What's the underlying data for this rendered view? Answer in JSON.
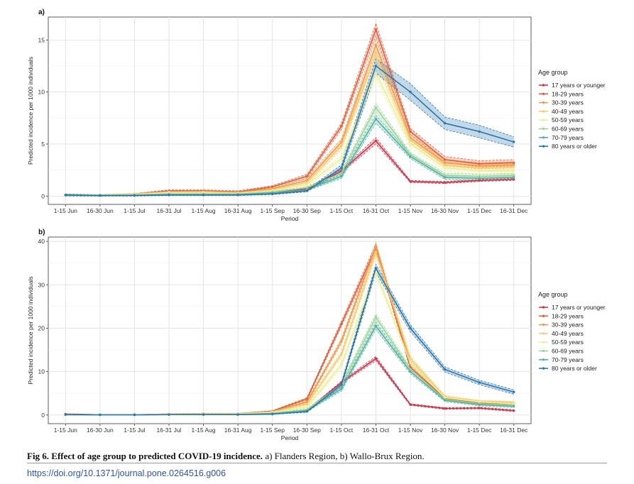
{
  "caption": {
    "label": "Fig 6. Effect of age group to predicted COVID-19 incidence.",
    "text": " a) Flanders Region, b) Wallo-Brux Region."
  },
  "doi": "https://doi.org/10.1371/journal.pone.0264516.g006",
  "chart_data": [
    {
      "type": "line",
      "panel_label": "a)",
      "xlabel": "Period",
      "ylabel": "Predicted incidence per 1000 individuals",
      "ylim": [
        -0.8,
        17.2
      ],
      "yticks": [
        0,
        5,
        10,
        15
      ],
      "grid": true,
      "legend_title": "Age group",
      "legend_position": "right",
      "categories": [
        "1-15 Jun",
        "16-30 Jun",
        "1-15 Jul",
        "16-31 Jul",
        "1-15 Aug",
        "16-31 Aug",
        "1-15 Sep",
        "16-30 Sep",
        "1-15 Oct",
        "16-31 Oct",
        "1-15 Nov",
        "16-30 Nov",
        "1-15 Dec",
        "16-31 Dec"
      ],
      "series": [
        {
          "name": "17 years or younger",
          "color": "#c93a4e",
          "values": [
            0.1,
            0.05,
            0.1,
            0.2,
            0.2,
            0.15,
            0.3,
            0.7,
            2.4,
            5.3,
            1.4,
            1.3,
            1.5,
            1.6
          ],
          "ci": [
            0.1,
            0.05,
            0.05,
            0.05,
            0.05,
            0.05,
            0.05,
            0.1,
            0.15,
            0.3,
            0.1,
            0.1,
            0.1,
            0.1
          ]
        },
        {
          "name": "18-29 years",
          "color": "#e0603f",
          "values": [
            0.1,
            0.1,
            0.2,
            0.5,
            0.5,
            0.4,
            0.9,
            1.9,
            6.7,
            16.0,
            6.2,
            3.5,
            3.1,
            3.2
          ],
          "ci": [
            0.1,
            0.05,
            0.05,
            0.1,
            0.1,
            0.1,
            0.1,
            0.2,
            0.3,
            0.6,
            0.3,
            0.3,
            0.3,
            0.3
          ]
        },
        {
          "name": "30-39 years",
          "color": "#f09a4e",
          "values": [
            0.1,
            0.1,
            0.2,
            0.4,
            0.45,
            0.35,
            0.7,
            1.5,
            5.2,
            14.5,
            5.6,
            3.2,
            2.9,
            3.0
          ],
          "ci": [
            0.1,
            0.05,
            0.05,
            0.1,
            0.1,
            0.1,
            0.1,
            0.2,
            0.3,
            0.6,
            0.3,
            0.3,
            0.3,
            0.3
          ]
        },
        {
          "name": "40-49 years",
          "color": "#f7cd73",
          "values": [
            0.1,
            0.1,
            0.2,
            0.4,
            0.4,
            0.3,
            0.6,
            1.3,
            4.8,
            13.5,
            5.4,
            3.0,
            2.7,
            2.8
          ],
          "ci": [
            0.1,
            0.05,
            0.05,
            0.1,
            0.1,
            0.1,
            0.1,
            0.2,
            0.3,
            0.6,
            0.3,
            0.3,
            0.3,
            0.3
          ]
        },
        {
          "name": "50-59 years",
          "color": "#eaf0a0",
          "values": [
            0.1,
            0.1,
            0.15,
            0.3,
            0.3,
            0.25,
            0.5,
            1.1,
            3.6,
            11.8,
            5.0,
            2.7,
            2.4,
            2.4
          ],
          "ci": [
            0.1,
            0.05,
            0.05,
            0.1,
            0.1,
            0.1,
            0.1,
            0.2,
            0.3,
            0.6,
            0.3,
            0.3,
            0.3,
            0.3
          ]
        },
        {
          "name": "60-69 years",
          "color": "#9fd49b",
          "values": [
            0.1,
            0.1,
            0.1,
            0.2,
            0.2,
            0.2,
            0.4,
            0.8,
            2.2,
            8.5,
            4.0,
            2.0,
            1.9,
            2.0
          ],
          "ci": [
            0.1,
            0.05,
            0.05,
            0.05,
            0.05,
            0.05,
            0.05,
            0.1,
            0.2,
            0.4,
            0.2,
            0.2,
            0.2,
            0.2
          ]
        },
        {
          "name": "70-79 years",
          "color": "#52b3a3",
          "values": [
            0.1,
            0.05,
            0.1,
            0.15,
            0.15,
            0.15,
            0.3,
            0.6,
            1.9,
            7.4,
            3.8,
            1.8,
            1.7,
            1.8
          ],
          "ci": [
            0.1,
            0.05,
            0.05,
            0.05,
            0.05,
            0.05,
            0.05,
            0.1,
            0.2,
            0.4,
            0.2,
            0.2,
            0.2,
            0.2
          ]
        },
        {
          "name": "80 years or older",
          "color": "#2b78ad",
          "values": [
            0.1,
            0.05,
            0.05,
            0.1,
            0.1,
            0.1,
            0.2,
            0.5,
            2.7,
            12.5,
            10.0,
            7.0,
            6.2,
            5.2
          ],
          "ci": [
            0.05,
            0.05,
            0.05,
            0.05,
            0.05,
            0.05,
            0.05,
            0.1,
            0.3,
            0.7,
            0.8,
            0.6,
            0.6,
            0.5
          ]
        }
      ]
    },
    {
      "type": "line",
      "panel_label": "b)",
      "xlabel": "Period",
      "ylabel": "Predicted incidence per 1000 individuals",
      "ylim": [
        -2.0,
        41.0
      ],
      "yticks": [
        0,
        10,
        20,
        30,
        40
      ],
      "grid": true,
      "legend_title": "Age group",
      "legend_position": "right",
      "categories": [
        "1-15 Jun",
        "16-30 Jun",
        "1-15 Jul",
        "16-31 Jul",
        "1-15 Aug",
        "16-31 Aug",
        "1-15 Sep",
        "16-30 Sep",
        "1-15 Oct",
        "16-31 Oct",
        "1-15 Nov",
        "16-30 Nov",
        "1-15 Dec",
        "16-31 Dec"
      ],
      "series": [
        {
          "name": "17 years or younger",
          "color": "#c93a4e",
          "values": [
            0.2,
            0.05,
            0.05,
            0.1,
            0.2,
            0.2,
            0.4,
            1.0,
            7.5,
            13.0,
            2.4,
            1.5,
            1.6,
            1.0
          ],
          "ci": [
            0.1,
            0.05,
            0.05,
            0.05,
            0.05,
            0.05,
            0.1,
            0.2,
            0.3,
            0.5,
            0.2,
            0.2,
            0.2,
            0.2
          ]
        },
        {
          "name": "18-29 years",
          "color": "#e0603f",
          "values": [
            0.1,
            0.05,
            0.05,
            0.2,
            0.3,
            0.3,
            0.9,
            3.7,
            21.0,
            38.5,
            11.0,
            3.8,
            2.8,
            2.6
          ],
          "ci": [
            0.1,
            0.05,
            0.05,
            0.1,
            0.1,
            0.1,
            0.1,
            0.3,
            0.6,
            0.9,
            0.5,
            0.3,
            0.3,
            0.3
          ]
        },
        {
          "name": "30-39 years",
          "color": "#f09a4e",
          "values": [
            0.1,
            0.05,
            0.05,
            0.2,
            0.3,
            0.3,
            0.8,
            3.0,
            17.0,
            38.8,
            12.0,
            4.0,
            3.0,
            2.7
          ],
          "ci": [
            0.1,
            0.05,
            0.05,
            0.1,
            0.1,
            0.1,
            0.1,
            0.3,
            0.6,
            0.9,
            0.5,
            0.3,
            0.3,
            0.3
          ]
        },
        {
          "name": "40-49 years",
          "color": "#f7cd73",
          "values": [
            0.1,
            0.05,
            0.05,
            0.2,
            0.3,
            0.3,
            0.7,
            2.5,
            14.0,
            37.5,
            13.0,
            4.2,
            3.1,
            2.8
          ],
          "ci": [
            0.1,
            0.05,
            0.05,
            0.1,
            0.1,
            0.1,
            0.1,
            0.3,
            0.6,
            0.9,
            0.5,
            0.3,
            0.3,
            0.3
          ]
        },
        {
          "name": "50-59 years",
          "color": "#eaf0a0",
          "values": [
            0.1,
            0.05,
            0.05,
            0.15,
            0.2,
            0.2,
            0.6,
            1.8,
            11.5,
            33.0,
            12.0,
            4.0,
            3.0,
            2.6
          ],
          "ci": [
            0.1,
            0.05,
            0.05,
            0.1,
            0.1,
            0.1,
            0.1,
            0.3,
            0.6,
            0.9,
            0.5,
            0.3,
            0.3,
            0.3
          ]
        },
        {
          "name": "60-69 years",
          "color": "#9fd49b",
          "values": [
            0.1,
            0.05,
            0.05,
            0.1,
            0.15,
            0.15,
            0.4,
            1.2,
            7.0,
            22.5,
            10.5,
            3.6,
            2.6,
            2.2
          ],
          "ci": [
            0.1,
            0.05,
            0.05,
            0.05,
            0.05,
            0.05,
            0.1,
            0.2,
            0.5,
            0.8,
            0.5,
            0.3,
            0.3,
            0.3
          ]
        },
        {
          "name": "70-79 years",
          "color": "#52b3a3",
          "values": [
            0.1,
            0.05,
            0.05,
            0.1,
            0.1,
            0.1,
            0.3,
            1.0,
            6.0,
            20.5,
            10.0,
            3.4,
            2.4,
            2.0
          ],
          "ci": [
            0.1,
            0.05,
            0.05,
            0.05,
            0.05,
            0.05,
            0.1,
            0.2,
            0.5,
            0.8,
            0.5,
            0.3,
            0.3,
            0.3
          ]
        },
        {
          "name": "80 years or older",
          "color": "#2b78ad",
          "values": [
            0.1,
            0.05,
            0.05,
            0.1,
            0.1,
            0.1,
            0.2,
            0.8,
            7.0,
            33.8,
            20.0,
            10.5,
            7.5,
            5.3
          ],
          "ci": [
            0.1,
            0.05,
            0.05,
            0.05,
            0.05,
            0.05,
            0.05,
            0.2,
            0.5,
            0.9,
            0.8,
            0.6,
            0.5,
            0.5
          ]
        }
      ]
    }
  ]
}
